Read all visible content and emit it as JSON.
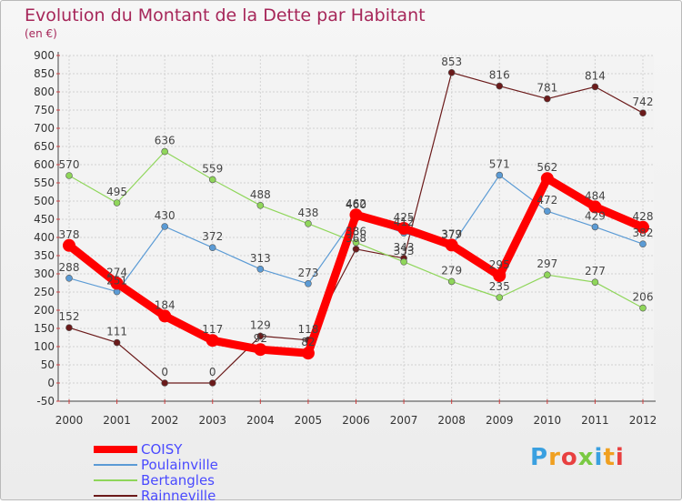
{
  "chart_data": {
    "type": "line",
    "title": "Evolution du Montant de la Dette par Habitant",
    "subtitle": "(en €)",
    "x": [
      "2000",
      "2001",
      "2002",
      "2003",
      "2004",
      "2005",
      "2006",
      "2007",
      "2008",
      "2009",
      "2010",
      "2011",
      "2012"
    ],
    "ylim": [
      -50,
      900
    ],
    "yticks": [
      -50,
      0,
      50,
      100,
      150,
      200,
      250,
      300,
      350,
      400,
      450,
      500,
      550,
      600,
      650,
      700,
      750,
      800,
      850,
      900
    ],
    "grid": true,
    "legend_position": "bottom-left",
    "series": [
      {
        "name": "COISY",
        "color": "#ff0000",
        "values": [
          378,
          274,
          184,
          117,
          92,
          82,
          462,
          425,
          379,
          295,
          562,
          484,
          428
        ]
      },
      {
        "name": "Poulainville",
        "color": "#5b9bd5",
        "values": [
          288,
          251,
          430,
          372,
          313,
          273,
          460,
          412,
          377,
          571,
          472,
          429,
          382
        ]
      },
      {
        "name": "Bertangles",
        "color": "#8fd65a",
        "values": [
          570,
          495,
          636,
          559,
          488,
          438,
          386,
          333,
          279,
          235,
          297,
          277,
          206
        ]
      },
      {
        "name": "Rainneville",
        "color": "#6b1a1a",
        "values": [
          152,
          111,
          0,
          0,
          129,
          118,
          368,
          343,
          853,
          816,
          781,
          814,
          742
        ]
      }
    ]
  },
  "logo": {
    "text": "Proxiti"
  }
}
